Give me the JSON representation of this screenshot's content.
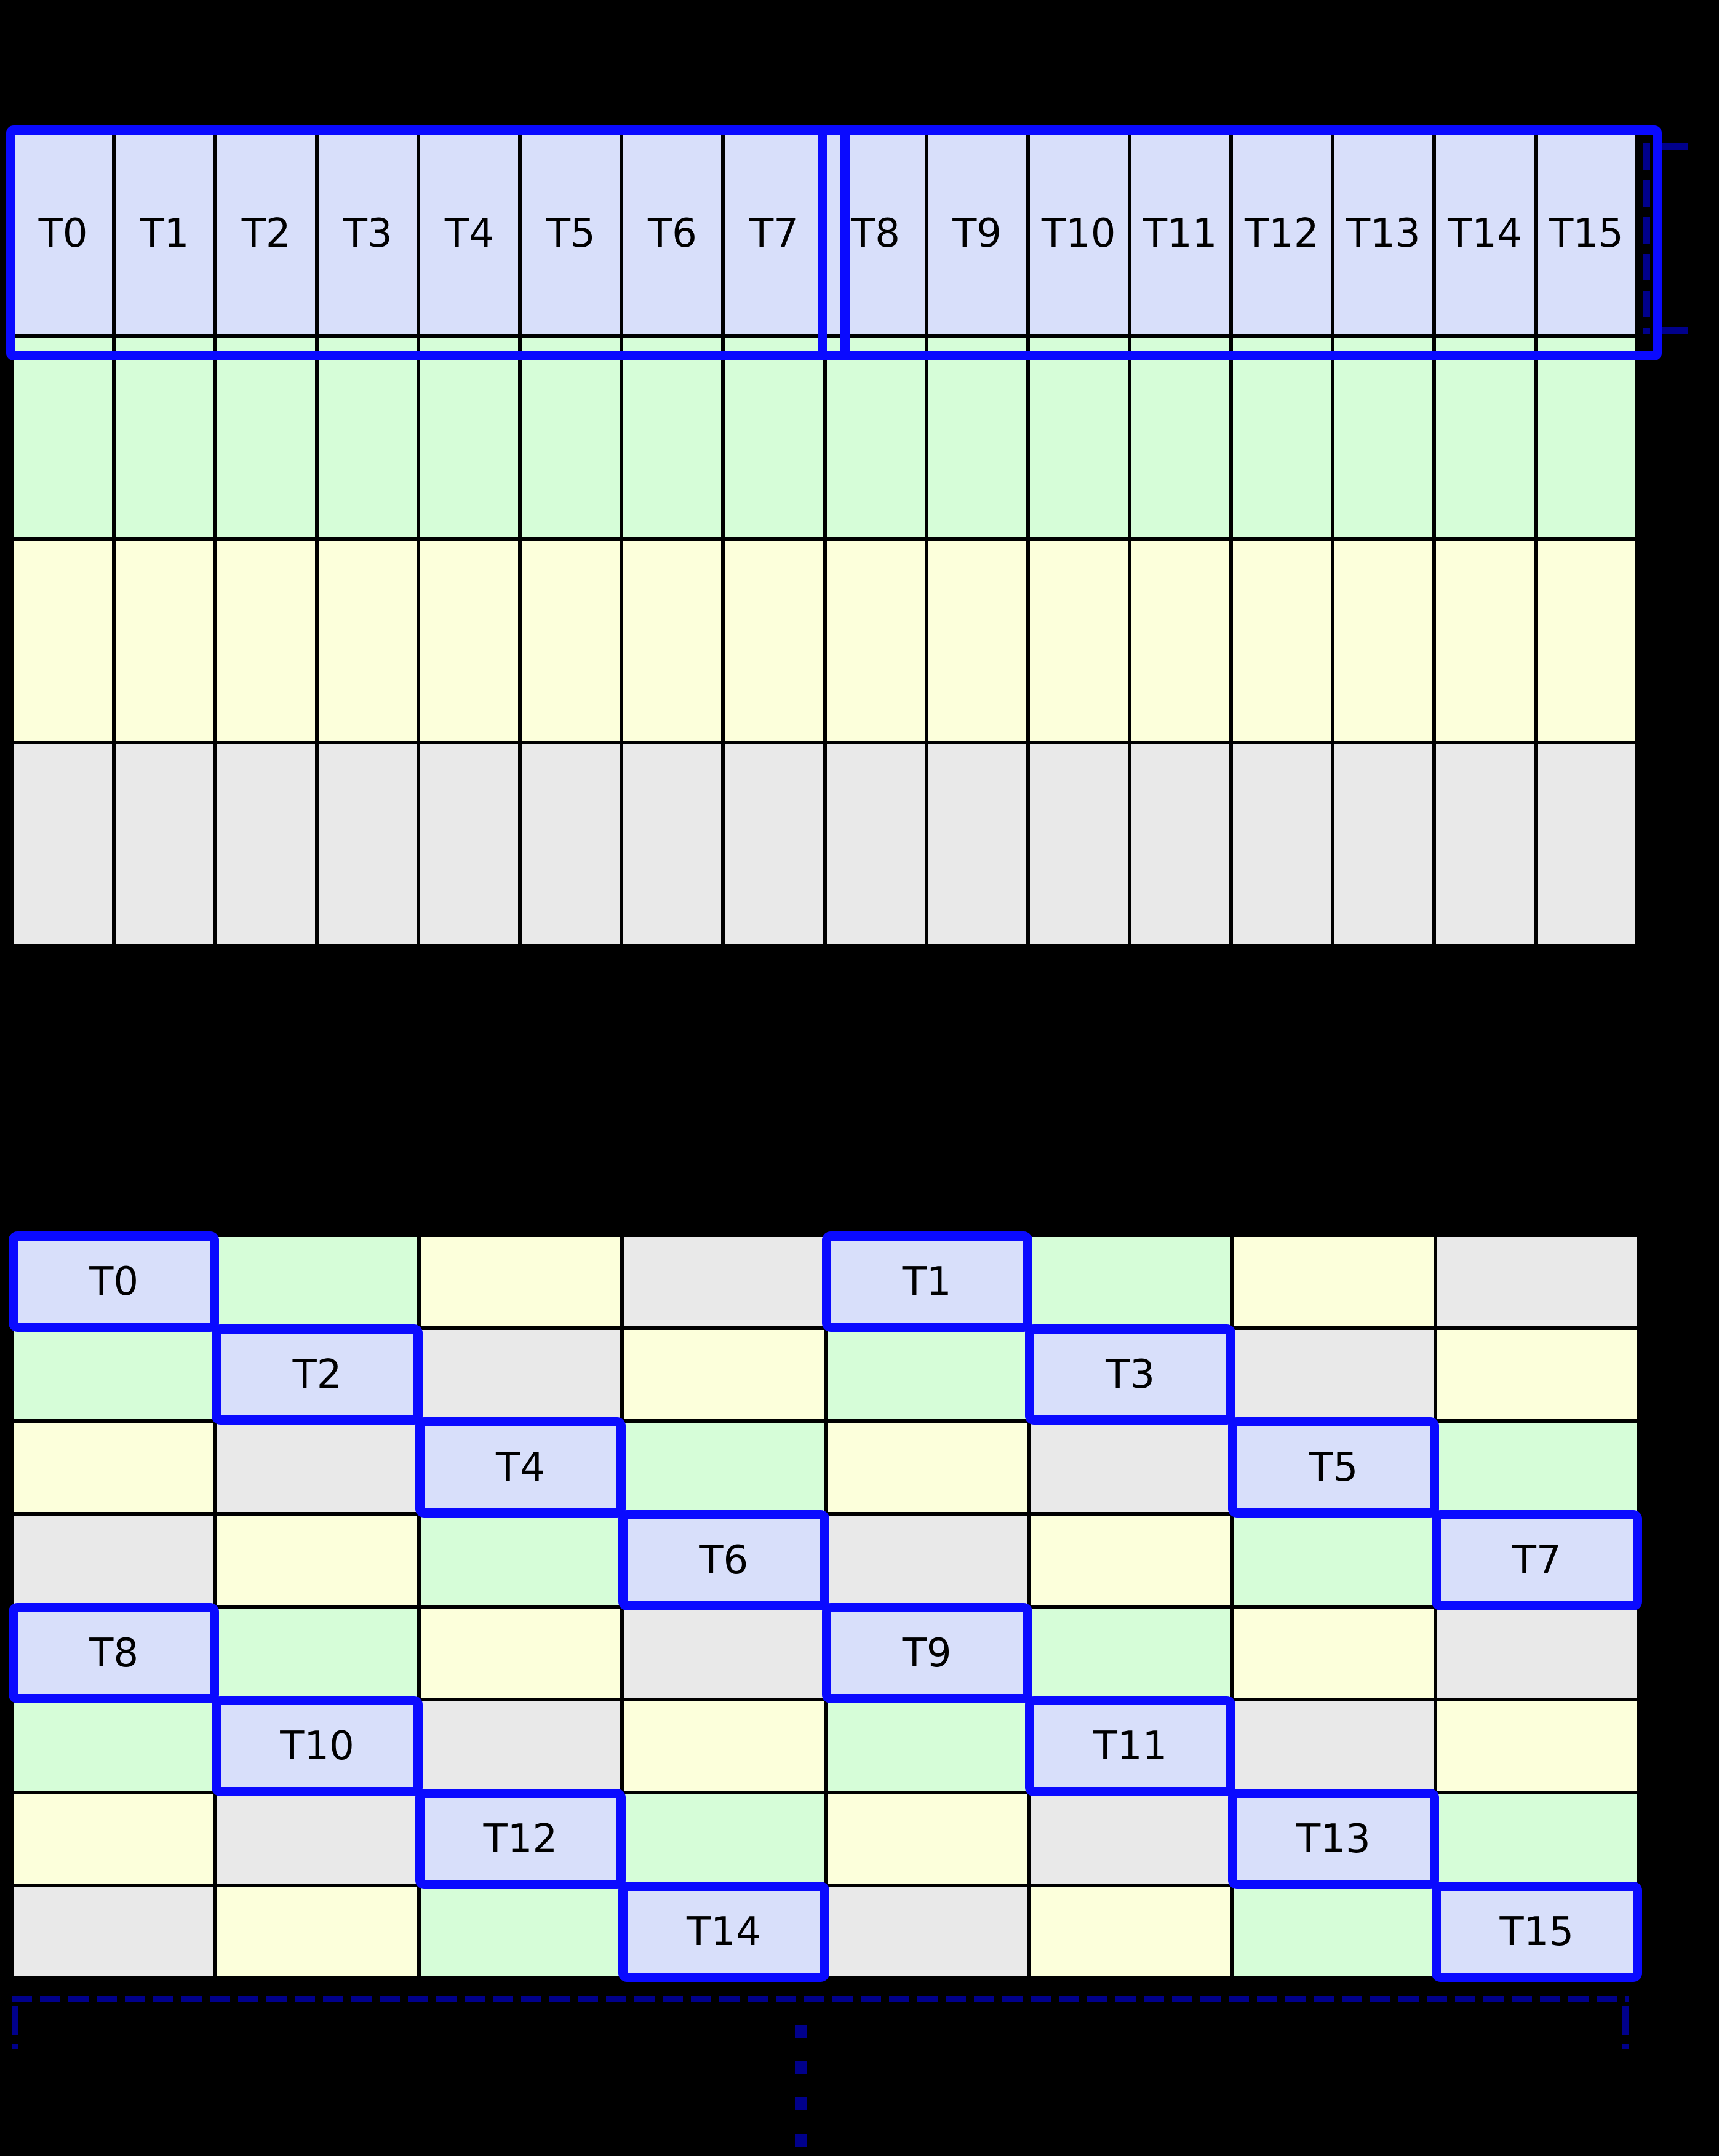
{
  "colors": {
    "background": "#000000",
    "grid_line": "#000000",
    "cell_blue": "#D8DFFA",
    "cell_green": "#D6FDD8",
    "cell_yellow": "#FCFFDB",
    "cell_gray": "#E9E9E9",
    "highlight_border": "#0A0AFF",
    "bracket": "#00008B",
    "label_color": "#000000"
  },
  "top_grid": {
    "num_columns": 16,
    "header_labels": [
      "T0",
      "T1",
      "T2",
      "T3",
      "T4",
      "T5",
      "T6",
      "T7",
      "T8",
      "T9",
      "T10",
      "T11",
      "T12",
      "T13",
      "T14",
      "T15"
    ],
    "warp_groups": [
      {
        "first_label": "T0",
        "last_label": "T7"
      },
      {
        "first_label": "T8",
        "last_label": "T15"
      }
    ],
    "body_row_colors": [
      "green",
      "yellow",
      "gray"
    ]
  },
  "bottom_grid": {
    "rows": [
      {
        "cells": [
          {
            "color": "blue",
            "label": "T0"
          },
          {
            "color": "green"
          },
          {
            "color": "yellow"
          },
          {
            "color": "gray"
          },
          {
            "color": "blue",
            "label": "T1"
          },
          {
            "color": "green"
          },
          {
            "color": "yellow"
          },
          {
            "color": "gray"
          }
        ]
      },
      {
        "cells": [
          {
            "color": "green"
          },
          {
            "color": "blue",
            "label": "T2"
          },
          {
            "color": "gray"
          },
          {
            "color": "yellow"
          },
          {
            "color": "green"
          },
          {
            "color": "blue",
            "label": "T3"
          },
          {
            "color": "gray"
          },
          {
            "color": "yellow"
          }
        ]
      },
      {
        "cells": [
          {
            "color": "yellow"
          },
          {
            "color": "gray"
          },
          {
            "color": "blue",
            "label": "T4"
          },
          {
            "color": "green"
          },
          {
            "color": "yellow"
          },
          {
            "color": "gray"
          },
          {
            "color": "blue",
            "label": "T5"
          },
          {
            "color": "green"
          }
        ]
      },
      {
        "cells": [
          {
            "color": "gray"
          },
          {
            "color": "yellow"
          },
          {
            "color": "green"
          },
          {
            "color": "blue",
            "label": "T6"
          },
          {
            "color": "gray"
          },
          {
            "color": "yellow"
          },
          {
            "color": "green"
          },
          {
            "color": "blue",
            "label": "T7"
          }
        ]
      },
      {
        "cells": [
          {
            "color": "blue",
            "label": "T8"
          },
          {
            "color": "green"
          },
          {
            "color": "yellow"
          },
          {
            "color": "gray"
          },
          {
            "color": "blue",
            "label": "T9"
          },
          {
            "color": "green"
          },
          {
            "color": "yellow"
          },
          {
            "color": "gray"
          }
        ]
      },
      {
        "cells": [
          {
            "color": "green"
          },
          {
            "color": "blue",
            "label": "T10"
          },
          {
            "color": "gray"
          },
          {
            "color": "yellow"
          },
          {
            "color": "green"
          },
          {
            "color": "blue",
            "label": "T11"
          },
          {
            "color": "gray"
          },
          {
            "color": "yellow"
          }
        ]
      },
      {
        "cells": [
          {
            "color": "yellow"
          },
          {
            "color": "gray"
          },
          {
            "color": "blue",
            "label": "T12"
          },
          {
            "color": "green"
          },
          {
            "color": "yellow"
          },
          {
            "color": "gray"
          },
          {
            "color": "blue",
            "label": "T13"
          },
          {
            "color": "green"
          }
        ]
      },
      {
        "cells": [
          {
            "color": "gray"
          },
          {
            "color": "yellow"
          },
          {
            "color": "green"
          },
          {
            "color": "blue",
            "label": "T14"
          },
          {
            "color": "gray"
          },
          {
            "color": "yellow"
          },
          {
            "color": "green"
          },
          {
            "color": "blue",
            "label": "T15"
          }
        ]
      }
    ]
  },
  "footer": {
    "ellipsis_dot_count": 4,
    "ellipsis_dot_tops": [
      3292,
      3351,
      3409,
      3469
    ]
  }
}
